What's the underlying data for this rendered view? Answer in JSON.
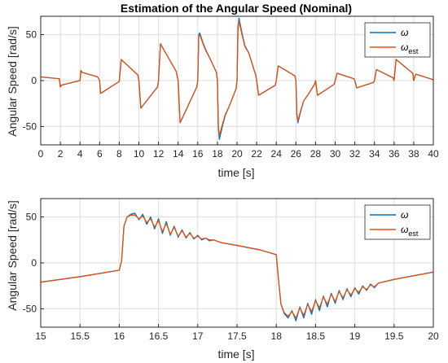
{
  "chart_data": [
    {
      "type": "line",
      "title": "Estimation of the Angular Speed (Nominal)",
      "xlabel": "time [s]",
      "ylabel": "Angular Speed [rad/s]",
      "xlim": [
        0,
        40
      ],
      "ylim": [
        -70,
        70
      ],
      "xticks": [
        0,
        2,
        4,
        6,
        8,
        10,
        12,
        14,
        16,
        18,
        20,
        22,
        24,
        26,
        28,
        30,
        32,
        34,
        36,
        38,
        40
      ],
      "yticks": [
        -50,
        0,
        50
      ],
      "grid": true,
      "legend": "top-right",
      "series": [
        {
          "name": "ω",
          "color": "#0072BD",
          "x": [
            0,
            1.9,
            2.0,
            2.1,
            4.0,
            4.1,
            4.2,
            5.8,
            6.0,
            6.1,
            8.0,
            8.2,
            9.9,
            10.0,
            10.2,
            11.9,
            12.0,
            12.2,
            13.8,
            14.0,
            14.2,
            15.9,
            16.0,
            16.1,
            16.2,
            16.5,
            16.8,
            17.2,
            17.9,
            18.0,
            18.1,
            18.2,
            18.5,
            18.8,
            19.2,
            19.9,
            20.0,
            20.1,
            20.2,
            20.5,
            20.8,
            21.2,
            21.9,
            22.0,
            22.2,
            23.9,
            24.0,
            24.2,
            25.9,
            26.0,
            26.1,
            26.2,
            26.5,
            26.8,
            27.2,
            27.9,
            28.0,
            28.2,
            29.9,
            30.0,
            30.2,
            31.9,
            32.0,
            32.2,
            33.9,
            34.0,
            34.2,
            35.9,
            36.0,
            36.2,
            37.9,
            38.0,
            38.2,
            40.0
          ],
          "y": [
            4,
            2,
            -7,
            -5,
            0,
            11,
            9,
            4,
            0,
            -14,
            -1,
            23,
            6,
            0,
            -30,
            -7,
            0,
            40,
            10,
            0,
            -46,
            -7,
            0,
            50,
            52,
            42,
            34,
            25,
            9,
            0,
            -52,
            -64,
            -50,
            -38,
            -28,
            -9,
            0,
            58,
            68,
            52,
            38,
            30,
            6,
            0,
            -16,
            -5,
            0,
            16,
            5,
            0,
            -38,
            -46,
            -33,
            -22,
            -16,
            -4,
            0,
            -16,
            -4,
            0,
            8,
            2,
            0,
            -8,
            -2,
            0,
            12,
            3,
            0,
            23,
            8,
            0,
            7,
            1
          ]
        },
        {
          "name": "ω_est",
          "color": "#D95319",
          "x": [
            0,
            1.9,
            2.0,
            2.1,
            4.0,
            4.1,
            4.2,
            5.8,
            6.0,
            6.1,
            8.0,
            8.2,
            9.9,
            10.0,
            10.2,
            11.9,
            12.0,
            12.2,
            13.8,
            14.0,
            14.2,
            15.9,
            16.0,
            16.1,
            16.2,
            16.5,
            16.8,
            17.2,
            17.9,
            18.0,
            18.1,
            18.2,
            18.5,
            18.8,
            19.2,
            19.9,
            20.0,
            20.1,
            20.2,
            20.5,
            20.8,
            21.2,
            21.9,
            22.0,
            22.2,
            23.9,
            24.0,
            24.2,
            25.9,
            26.0,
            26.1,
            26.2,
            26.5,
            26.8,
            27.2,
            27.9,
            28.0,
            28.2,
            29.9,
            30.0,
            30.2,
            31.9,
            32.0,
            32.2,
            33.9,
            34.0,
            34.2,
            35.9,
            36.0,
            36.2,
            37.9,
            38.0,
            38.2,
            40.0
          ],
          "y": [
            4,
            2,
            -7,
            -5,
            0,
            11,
            9,
            4,
            0,
            -14,
            -1,
            23,
            6,
            0,
            -30,
            -7,
            0,
            40,
            10,
            0,
            -46,
            -7,
            0,
            48,
            50,
            41,
            33,
            25,
            9,
            0,
            -50,
            -60,
            -48,
            -37,
            -28,
            -9,
            0,
            55,
            65,
            50,
            37,
            30,
            6,
            0,
            -16,
            -5,
            0,
            16,
            5,
            0,
            -36,
            -44,
            -32,
            -22,
            -16,
            -4,
            0,
            -16,
            -4,
            0,
            8,
            2,
            0,
            -8,
            -2,
            0,
            12,
            3,
            0,
            23,
            8,
            0,
            7,
            1
          ]
        }
      ]
    },
    {
      "type": "line",
      "title": "",
      "xlabel": "time [s]",
      "ylabel": "Angular Speed [rad/s]",
      "xlim": [
        15,
        20
      ],
      "ylim": [
        -70,
        70
      ],
      "xticks": [
        15,
        15.5,
        16,
        16.5,
        17,
        17.5,
        18,
        18.5,
        19,
        19.5,
        20
      ],
      "yticks": [
        -50,
        0,
        50
      ],
      "grid": true,
      "legend": "top-right",
      "series": [
        {
          "name": "ω",
          "color": "#0072BD",
          "x": [
            15.0,
            15.5,
            16.0,
            16.03,
            16.06,
            16.1,
            16.15,
            16.2,
            16.25,
            16.3,
            16.35,
            16.4,
            16.45,
            16.5,
            16.55,
            16.6,
            16.65,
            16.7,
            16.75,
            16.8,
            16.85,
            16.9,
            16.95,
            17.0,
            17.05,
            17.1,
            17.15,
            17.2,
            17.3,
            17.5,
            17.8,
            18.0,
            18.03,
            18.06,
            18.1,
            18.15,
            18.2,
            18.25,
            18.3,
            18.35,
            18.4,
            18.45,
            18.5,
            18.55,
            18.6,
            18.65,
            18.7,
            18.75,
            18.8,
            18.85,
            18.9,
            18.95,
            19.0,
            19.05,
            19.1,
            19.15,
            19.2,
            19.25,
            19.3,
            19.5,
            20.0
          ],
          "y": [
            -21,
            -15,
            -8,
            2,
            40,
            50,
            53,
            54,
            47,
            53,
            42,
            50,
            37,
            48,
            32,
            45,
            30,
            40,
            28,
            36,
            27,
            33,
            26,
            30,
            25,
            27,
            24,
            25,
            22,
            19,
            14,
            9,
            -20,
            -45,
            -55,
            -60,
            -52,
            -63,
            -48,
            -60,
            -44,
            -56,
            -40,
            -52,
            -36,
            -48,
            -33,
            -44,
            -30,
            -40,
            -28,
            -37,
            -27,
            -34,
            -25,
            -30,
            -23,
            -27,
            -22,
            -18,
            -10
          ]
        },
        {
          "name": "ω_est",
          "color": "#D95319",
          "x": [
            15.0,
            15.5,
            16.0,
            16.03,
            16.06,
            16.1,
            16.15,
            16.2,
            16.25,
            16.3,
            16.35,
            16.4,
            16.45,
            16.5,
            16.55,
            16.6,
            16.65,
            16.7,
            16.75,
            16.8,
            16.85,
            16.9,
            16.95,
            17.0,
            17.05,
            17.1,
            17.15,
            17.2,
            17.3,
            17.5,
            17.8,
            18.0,
            18.03,
            18.06,
            18.1,
            18.15,
            18.2,
            18.25,
            18.3,
            18.35,
            18.4,
            18.45,
            18.5,
            18.55,
            18.6,
            18.65,
            18.7,
            18.75,
            18.8,
            18.85,
            18.9,
            18.95,
            19.0,
            19.05,
            19.1,
            19.15,
            19.2,
            19.25,
            19.3,
            19.5,
            20.0
          ],
          "y": [
            -21,
            -15,
            -8,
            2,
            40,
            50,
            52,
            52,
            48,
            51,
            44,
            48,
            39,
            46,
            34,
            43,
            31,
            39,
            29,
            35,
            28,
            32,
            27,
            29,
            26,
            27,
            25,
            25,
            22,
            19,
            14,
            9,
            -20,
            -45,
            -54,
            -58,
            -53,
            -60,
            -49,
            -57,
            -45,
            -53,
            -41,
            -49,
            -37,
            -45,
            -34,
            -42,
            -31,
            -38,
            -29,
            -35,
            -28,
            -32,
            -26,
            -29,
            -24,
            -26,
            -22,
            -18,
            -10
          ]
        }
      ]
    }
  ]
}
